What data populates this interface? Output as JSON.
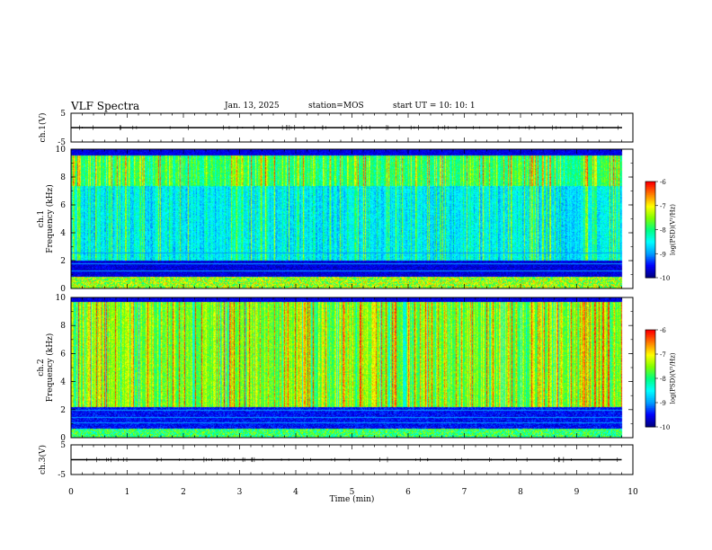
{
  "header": {
    "title": "VLF Spectra",
    "date": "Jan. 13, 2025",
    "station": "station=MOS",
    "start": "start  UT =   10: 10: 1"
  },
  "chart_data": [
    {
      "type": "line",
      "panel": "ch1-waveform",
      "ylabel": "ch.1(V)",
      "ylim": [
        -5,
        5
      ],
      "yticks": [
        "5",
        "-5"
      ],
      "x": [
        0,
        9.8
      ],
      "y": [
        0,
        0
      ]
    },
    {
      "type": "heatmap",
      "panel": "ch1-spectrogram",
      "ylabel": "ch.1\nFrequency (kHz)",
      "ylim": [
        0,
        10
      ],
      "yticks": [
        "0",
        "2",
        "4",
        "6",
        "8",
        "10"
      ],
      "xlim": [
        0,
        10
      ],
      "data_xmax": 9.8,
      "colorbar": {
        "label": "log(PSD)(V²/Hz)",
        "range": [
          -10,
          -6
        ],
        "ticks": [
          "-6",
          "-7",
          "-8",
          "-9",
          "-10"
        ]
      }
    },
    {
      "type": "heatmap",
      "panel": "ch2-spectrogram",
      "ylabel": "ch.2\nFrequency (kHz)",
      "ylim": [
        0,
        10
      ],
      "yticks": [
        "0",
        "2",
        "4",
        "6",
        "8",
        "10"
      ],
      "xlim": [
        0,
        10
      ],
      "data_xmax": 9.8,
      "colorbar": {
        "label": "log(PSD)(V²/Hz)",
        "range": [
          -10,
          -6
        ],
        "ticks": [
          "-6",
          "-7",
          "-8",
          "-9",
          "-10"
        ]
      }
    },
    {
      "type": "line",
      "panel": "ch3-waveform",
      "ylabel": "ch.3(V)",
      "ylim": [
        -5,
        5
      ],
      "yticks": [
        "5",
        "-5"
      ],
      "x": [
        0,
        9.8
      ],
      "y": [
        0,
        0
      ]
    }
  ],
  "xaxis": {
    "label": "Time (min)",
    "ticks": [
      "0",
      "1",
      "2",
      "3",
      "4",
      "5",
      "6",
      "7",
      "8",
      "9",
      "10"
    ]
  },
  "colors": {
    "frame": "#000000",
    "colormap": [
      "#000080",
      "#0000ff",
      "#00a0ff",
      "#00ffff",
      "#00ff80",
      "#80ff00",
      "#ffff00",
      "#ff8000",
      "#ff0000",
      "#ffffff"
    ]
  }
}
